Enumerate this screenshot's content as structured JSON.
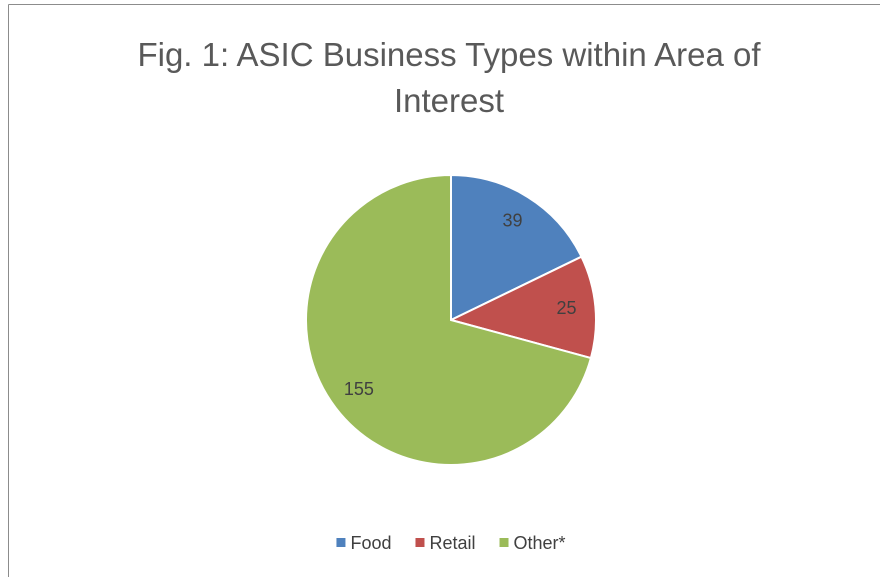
{
  "chart_data": {
    "type": "pie",
    "title": "Fig. 1: ASIC Business Types within Area of Interest",
    "categories": [
      "Food",
      "Retail",
      "Other*"
    ],
    "values": [
      39,
      25,
      155
    ],
    "colors": [
      "#4f81bd",
      "#c0504d",
      "#9bbb59"
    ],
    "legend": "bottom"
  }
}
